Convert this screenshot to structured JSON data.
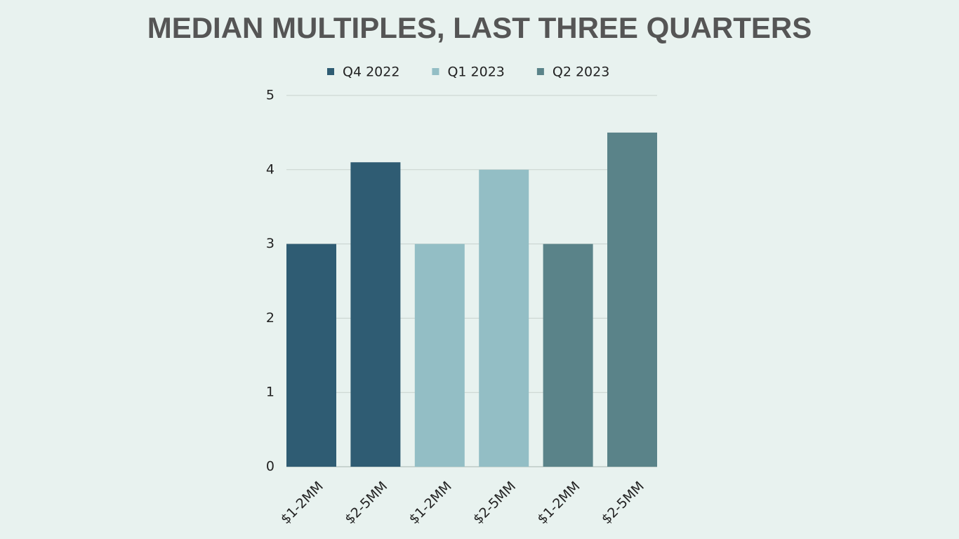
{
  "chart_data": {
    "type": "bar",
    "title": "MEDIAN MULTIPLES, LAST THREE QUARTERS",
    "categories": [
      "$1-2MM",
      "$2-5MM",
      "$1-2MM",
      "$2-5MM",
      "$1-2MM",
      "$2-5MM"
    ],
    "series": [
      {
        "name": "Q4 2022",
        "color": "#2f5c73",
        "values": [
          3,
          4.1,
          null,
          null,
          null,
          null
        ]
      },
      {
        "name": "Q1 2023",
        "color": "#93bec5",
        "values": [
          null,
          null,
          3,
          4,
          null,
          null
        ]
      },
      {
        "name": "Q2 2023",
        "color": "#5a8389",
        "values": [
          null,
          null,
          null,
          null,
          3,
          4.5
        ]
      }
    ],
    "ylim": [
      0,
      5
    ],
    "yticks": [
      0,
      1,
      2,
      3,
      4,
      5
    ],
    "grid": true,
    "legend": "top"
  }
}
